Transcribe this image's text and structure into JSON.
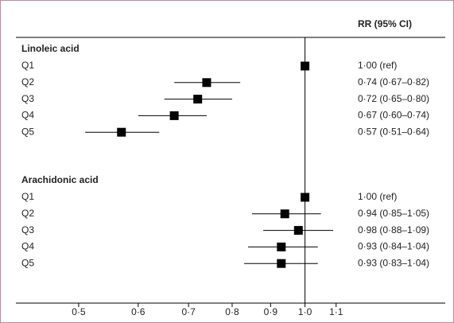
{
  "chart_data": {
    "type": "forest",
    "header": "RR (95% CI)",
    "log_scale": true,
    "reference_line": 1,
    "color": "#000000",
    "xlim": [
      0.43,
      1.15
    ],
    "xticks": [
      {
        "value": 0.5,
        "label": "0·5"
      },
      {
        "value": 0.6,
        "label": "0·6"
      },
      {
        "value": 0.7,
        "label": "0·7"
      },
      {
        "value": 0.8,
        "label": "0·8"
      },
      {
        "value": 0.9,
        "label": "0·9"
      },
      {
        "value": 1.0,
        "label": "1·0"
      },
      {
        "value": 1.1,
        "label": "1·1"
      }
    ],
    "groups": [
      {
        "name": "Linoleic acid",
        "rows": [
          {
            "label": "Q1",
            "value": 1.0,
            "value_label": "1·00 (ref)"
          },
          {
            "label": "Q2",
            "value": 0.74,
            "lower": 0.67,
            "upper": 0.82,
            "value_label": "0·74 (0·67–0·82)"
          },
          {
            "label": "Q3",
            "value": 0.72,
            "lower": 0.65,
            "upper": 0.8,
            "value_label": "0·72 (0·65–0·80)"
          },
          {
            "label": "Q4",
            "value": 0.67,
            "lower": 0.6,
            "upper": 0.74,
            "value_label": "0·67 (0·60–0·74)"
          },
          {
            "label": "Q5",
            "value": 0.57,
            "lower": 0.51,
            "upper": 0.64,
            "value_label": "0·57 (0·51–0·64)"
          }
        ]
      },
      {
        "name": "Arachidonic acid",
        "rows": [
          {
            "label": "Q1",
            "value": 1.0,
            "value_label": "1·00 (ref)"
          },
          {
            "label": "Q2",
            "value": 0.94,
            "lower": 0.85,
            "upper": 1.05,
            "value_label": "0·94 (0·85–1·05)"
          },
          {
            "label": "Q3",
            "value": 0.98,
            "lower": 0.88,
            "upper": 1.09,
            "value_label": "0·98 (0·88–1·09)"
          },
          {
            "label": "Q4",
            "value": 0.93,
            "lower": 0.84,
            "upper": 1.04,
            "value_label": "0·93 (0·84–1·04)"
          },
          {
            "label": "Q5",
            "value": 0.93,
            "lower": 0.83,
            "upper": 1.04,
            "value_label": "0·93 (0·83–1·04)"
          }
        ]
      }
    ]
  }
}
